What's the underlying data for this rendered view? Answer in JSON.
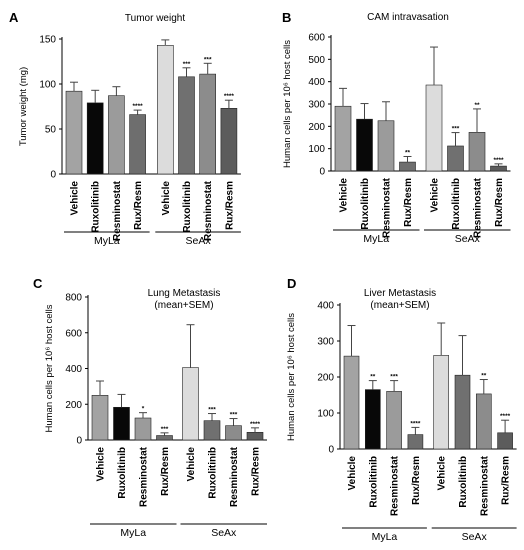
{
  "styles": {
    "bar_colors": [
      "#a3a3a3",
      "#080808",
      "#9b9b9b",
      "#6e6e6e",
      "#dcdcdc",
      "#707070",
      "#8c8c8c",
      "#5c5c5c"
    ],
    "axis_color": "#000000"
  },
  "chart_data": [
    {
      "panel": "A",
      "type": "bar",
      "title": "Tumor weight",
      "ylabel": "Tumor weight (mg)",
      "ylim": [
        0,
        150
      ],
      "yticks": [
        "0",
        "50",
        "100",
        "150"
      ],
      "yticks_values": [
        0,
        50,
        100,
        150
      ],
      "categories": [
        "Vehicle",
        "Ruxolitinib",
        "Resminostat",
        "Rux/Resm",
        "Vehicle",
        "Ruxolitinib",
        "Resminostat",
        "Rux/Resm"
      ],
      "values": [
        92,
        79,
        87,
        66,
        143,
        108,
        111,
        73
      ],
      "errors": [
        10,
        14,
        10,
        5,
        6,
        10,
        12,
        9
      ],
      "significance": [
        "",
        "",
        "",
        "****",
        "",
        "***",
        "***",
        "****"
      ],
      "groups": [
        {
          "name": "MyLa",
          "span": [
            0,
            3
          ]
        },
        {
          "name": "SeAx",
          "span": [
            4,
            7
          ]
        }
      ],
      "grid": false,
      "legend": "none"
    },
    {
      "panel": "B",
      "type": "bar",
      "title": "CAM intravasation",
      "ylabel": "Human cells per 10⁶ host cells",
      "ylim": [
        0,
        600
      ],
      "yticks": [
        "0",
        "100",
        "200",
        "300",
        "400",
        "500",
        "600"
      ],
      "yticks_values": [
        0,
        100,
        200,
        300,
        400,
        500,
        600
      ],
      "categories": [
        "Vehicle",
        "Ruxolitinib",
        "Resminostat",
        "Rux/Resm",
        "Vehicle",
        "Ruxolitinib",
        "Resminostat",
        "Rux/Resm"
      ],
      "values": [
        290,
        232,
        225,
        40,
        385,
        112,
        173,
        22
      ],
      "errors": [
        80,
        70,
        85,
        25,
        170,
        60,
        105,
        10
      ],
      "significance": [
        "",
        "",
        "",
        "**",
        "",
        "***",
        "**",
        "****"
      ],
      "groups": [
        {
          "name": "MyLa",
          "span": [
            0,
            3
          ]
        },
        {
          "name": "SeAx",
          "span": [
            4,
            7
          ]
        }
      ],
      "grid": false,
      "legend": "none"
    },
    {
      "panel": "C",
      "type": "bar",
      "title": "Lung Metastasis",
      "subtitle": "(mean+SEM)",
      "ylabel": "Human cells per 10⁶ host cells",
      "ylim": [
        0,
        800
      ],
      "yticks": [
        "0",
        "200",
        "400",
        "600",
        "800"
      ],
      "yticks_values": [
        0,
        200,
        400,
        600,
        800
      ],
      "categories": [
        "Vehicle",
        "Ruxolitinib",
        "Resminostat",
        "Rux/Resm",
        "Vehicle",
        "Ruxolitinib",
        "Resminostat",
        "Rux/Resm"
      ],
      "values": [
        250,
        183,
        123,
        25,
        405,
        108,
        80,
        43
      ],
      "errors": [
        80,
        72,
        30,
        15,
        240,
        40,
        40,
        25
      ],
      "significance": [
        "",
        "",
        "*",
        "***",
        "",
        "***",
        "***",
        "****"
      ],
      "groups": [
        {
          "name": "MyLa",
          "span": [
            0,
            3
          ]
        },
        {
          "name": "SeAx",
          "span": [
            4,
            7
          ]
        }
      ],
      "grid": false,
      "legend": "none"
    },
    {
      "panel": "D",
      "type": "bar",
      "title": "Liver Metastasis",
      "subtitle": "(mean+SEM)",
      "ylabel": "Human cells per 10⁶ host cells",
      "ylim": [
        0,
        400
      ],
      "yticks": [
        "0",
        "100",
        "200",
        "300",
        "400"
      ],
      "yticks_values": [
        0,
        100,
        200,
        300,
        400
      ],
      "categories": [
        "Vehicle",
        "Ruxolitinib",
        "Resminostat",
        "Rux/Resm",
        "Vehicle",
        "Ruxolitinib",
        "Resminostat",
        "Rux/Resm"
      ],
      "values": [
        258,
        165,
        160,
        40,
        260,
        205,
        153,
        45
      ],
      "errors": [
        85,
        25,
        30,
        20,
        90,
        110,
        40,
        35
      ],
      "significance": [
        "",
        "**",
        "***",
        "****",
        "",
        "",
        "**",
        "****"
      ],
      "groups": [
        {
          "name": "MyLa",
          "span": [
            0,
            3
          ]
        },
        {
          "name": "SeAx",
          "span": [
            4,
            7
          ]
        }
      ],
      "grid": false,
      "legend": "none"
    }
  ]
}
